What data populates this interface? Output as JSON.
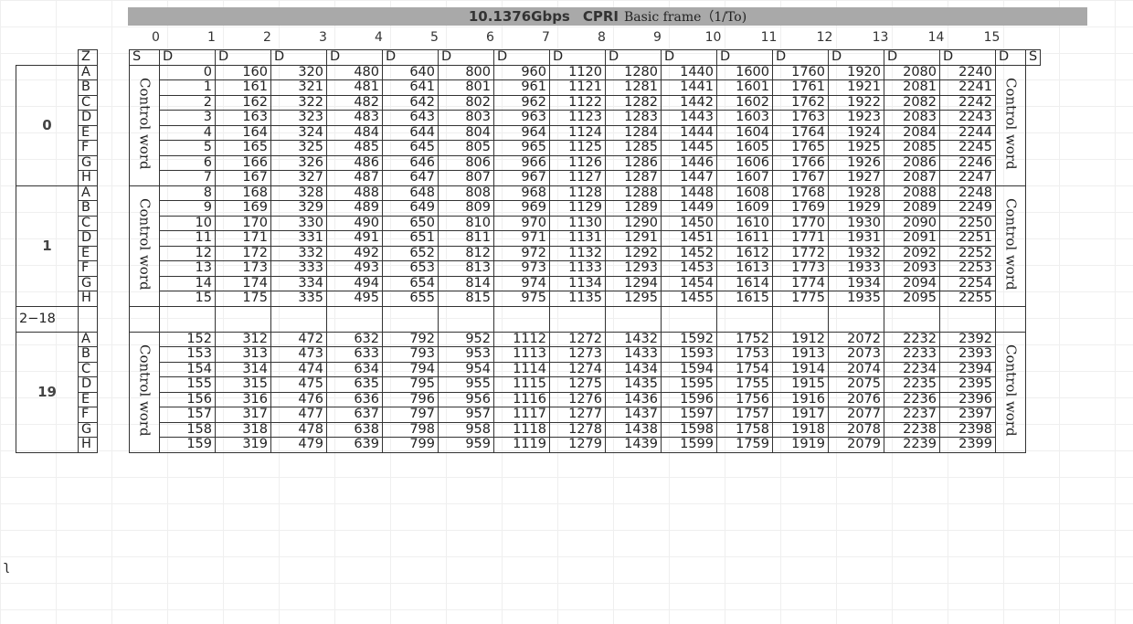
{
  "title": {
    "rate": "10.1376Gbps",
    "protocol": "CPRI",
    "caption": "Basic frame（1/To)"
  },
  "columns": [
    "0",
    "1",
    "2",
    "3",
    "4",
    "5",
    "6",
    "7",
    "8",
    "9",
    "10",
    "11",
    "12",
    "13",
    "14",
    "15"
  ],
  "header_row": {
    "z": "Z",
    "s_left": "S",
    "d": "D",
    "s_right": "S"
  },
  "control_word": "Control word",
  "rows": [
    "A",
    "B",
    "C",
    "D",
    "E",
    "F",
    "G",
    "H"
  ],
  "groups": [
    {
      "label": "0",
      "start": 0
    },
    {
      "label": "1",
      "start": 8
    }
  ],
  "gap_label": "2−18",
  "last_group": {
    "label": "19",
    "start": 152
  },
  "stray_mark": "ʅ"
}
